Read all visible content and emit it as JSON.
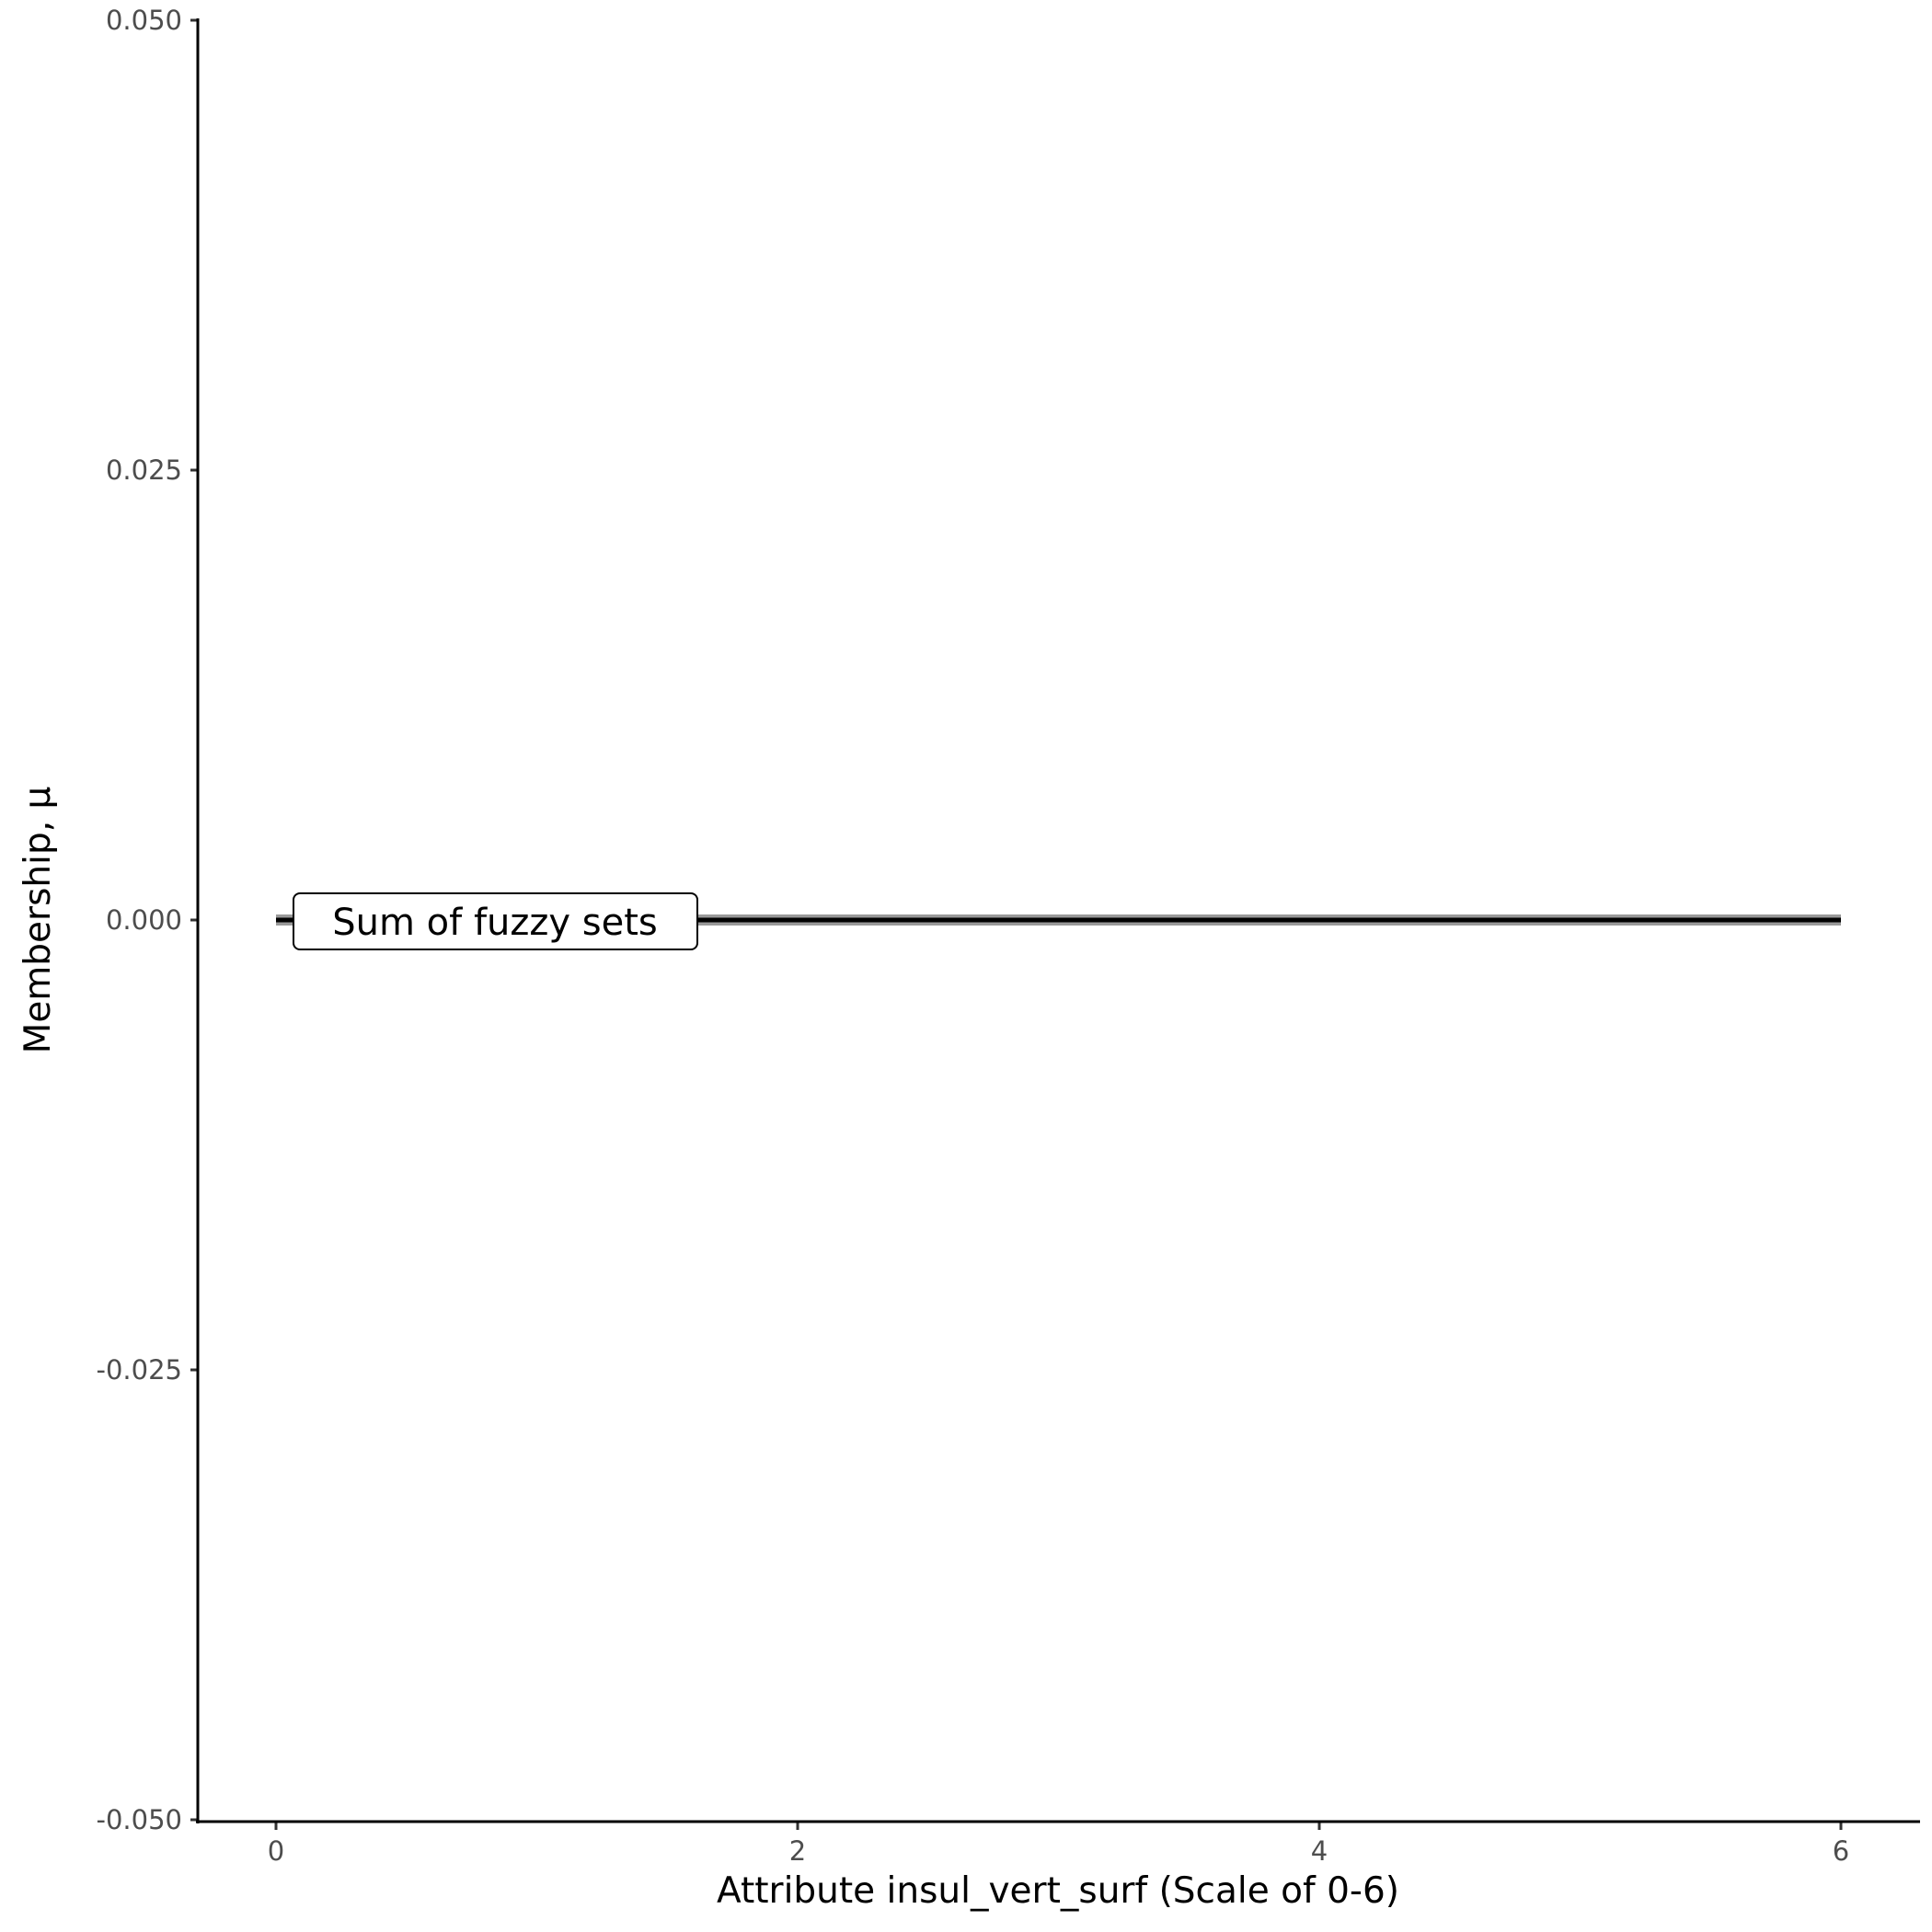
{
  "chart_data": {
    "type": "line",
    "xlabel": "Attribute insul_vert_surf (Scale of 0-6)",
    "ylabel": "Membership, μ",
    "xlim": [
      -0.3,
      6.3
    ],
    "ylim": [
      -0.05,
      0.05
    ],
    "x_ticks": [
      0,
      2,
      4,
      6
    ],
    "x_tick_labels": [
      "0",
      "2",
      "4",
      "6"
    ],
    "y_ticks": [
      -0.05,
      -0.025,
      0,
      0.025,
      0.05
    ],
    "y_tick_labels": [
      "-0.050",
      "-0.025",
      "0.000",
      "0.025",
      "0.050"
    ],
    "grid": false,
    "series": [
      {
        "name": "Sum of fuzzy sets",
        "x": [
          0,
          6
        ],
        "y": [
          0,
          0
        ],
        "color": "#000000",
        "halo_color": "#999999"
      }
    ],
    "annotations": [
      {
        "text": "Sum of fuzzy sets",
        "x": 0.05,
        "y": 0
      }
    ]
  }
}
